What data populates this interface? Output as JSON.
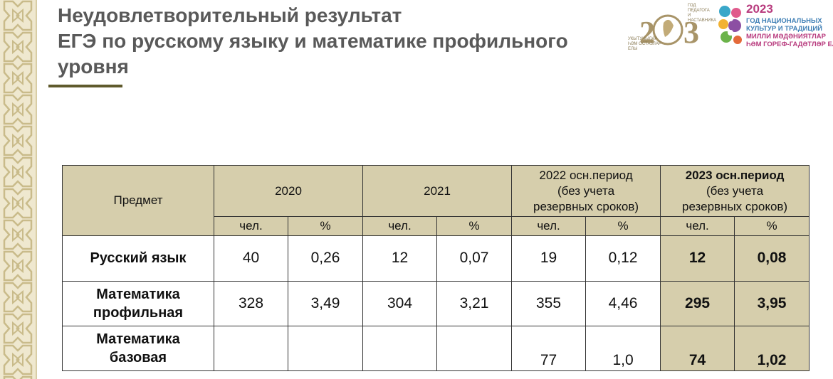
{
  "title": {
    "line1": "Неудовлетворительный результат",
    "line2": "ЕГЭ по русскому языку и математике профильного",
    "line3": "уровня"
  },
  "logos": {
    "pedagog": {
      "year_text": "2023",
      "top_text_1": "ГОД",
      "top_text_2": "ПЕДАГОГА",
      "top_text_3": "И НАСТАВНИКА",
      "bottom_text_1": "УКЫТУЧЫЛАР",
      "bottom_text_2": "ҺӘМ ОСТАЗЛАР",
      "bottom_text_3": "ЕЛЫ"
    },
    "culture": {
      "year": "2023",
      "line1": "ГОД НАЦИОНАЛЬНЫХ",
      "line2": "КУЛЬТУР И ТРАДИЦИЙ",
      "line3": "МИЛЛИ МӘДӘНИЯТЛАР",
      "line4": "ҺӘМ ГОРЕФ-ГАДӘТЛӘР ЕЛЫ"
    }
  },
  "colors": {
    "header_bg": "#d6ceac",
    "title": "#595959",
    "underline": "#5f5a2c",
    "border_pattern": "#efe8cf"
  },
  "table": {
    "subject_header": "Предмет",
    "years": [
      {
        "label": "2020",
        "bold": false
      },
      {
        "label": "2021",
        "bold": false
      },
      {
        "label_line1": "2022 осн.период",
        "label_line2": "(без учета",
        "label_line3": "резервных сроков)",
        "bold": false
      },
      {
        "label_line1": "2023 осн.период",
        "label_line2": "(без учета",
        "label_line3": "резервных сроков)",
        "bold": true
      }
    ],
    "sub_headers": {
      "count": "чел.",
      "percent": "%"
    },
    "rows": [
      {
        "subject_line1": "Русский язык",
        "subject_line2": "",
        "values": [
          "40",
          "0,26",
          "12",
          "0,07",
          "19",
          "0,12",
          "12",
          "0,08"
        ]
      },
      {
        "subject_line1": "Математика",
        "subject_line2": "профильная",
        "values": [
          "328",
          "3,49",
          "304",
          "3,21",
          "355",
          "4,46",
          "295",
          "3,95"
        ]
      },
      {
        "subject_line1": "Математика",
        "subject_line2": "базовая",
        "values": [
          "",
          "",
          "",
          "",
          "77",
          "1,0",
          "74",
          "1,02"
        ]
      }
    ]
  }
}
